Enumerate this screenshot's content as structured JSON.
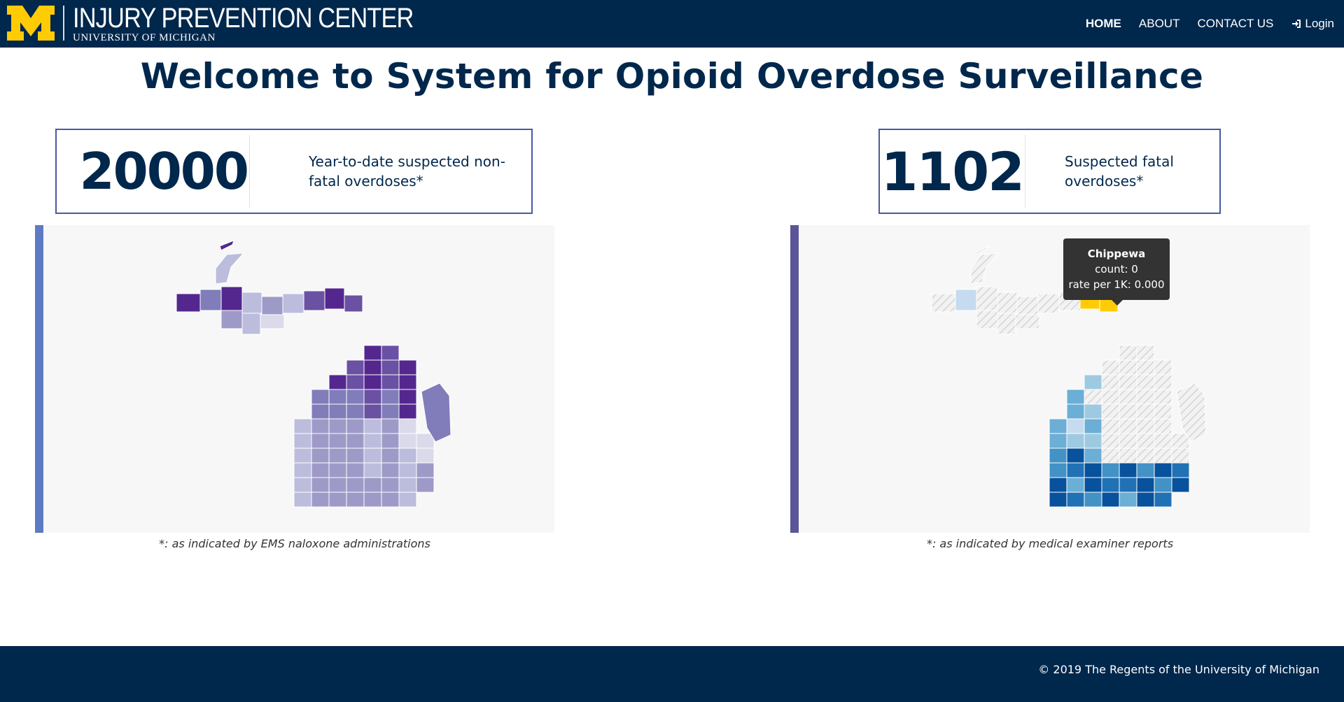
{
  "header": {
    "logo_letter": "M",
    "brand_title": "INJURY PREVENTION CENTER",
    "brand_subtitle": "UNIVERSITY OF MICHIGAN",
    "nav": [
      {
        "label": "HOME",
        "active": true
      },
      {
        "label": "ABOUT",
        "active": false
      },
      {
        "label": "CONTACT US",
        "active": false
      },
      {
        "label": "Login",
        "icon": "sign-in-icon",
        "active": false
      }
    ]
  },
  "main": {
    "title": "Welcome to System for Opioid Overdose Surveillance",
    "nonfatal": {
      "count": "20000",
      "label": "Year-to-date suspected non-fatal overdoses*",
      "footnote": "*: as indicated by EMS naloxone administrations"
    },
    "fatal": {
      "count": "1102",
      "label": "Suspected fatal overdoses*",
      "footnote": "*: as indicated by medical examiner reports"
    },
    "tooltip": {
      "county": "Chippewa",
      "count_line": "count: 0",
      "rate_line": "rate per 1K: 0.000"
    }
  },
  "colors": {
    "navy": "#00274c",
    "maize": "#ffcb05",
    "purple_scale": [
      "#dadaeb",
      "#bcbddc",
      "#9e9ac8",
      "#807dba",
      "#6a51a3",
      "#54278f"
    ],
    "blue_scale": [
      "#c6dbef",
      "#9ecae1",
      "#6baed6",
      "#4292c6",
      "#2171b5",
      "#08519c"
    ],
    "highlight": "#ffcb05"
  },
  "footer": {
    "copyright": "© 2019 The Regents of the University of Michigan"
  }
}
